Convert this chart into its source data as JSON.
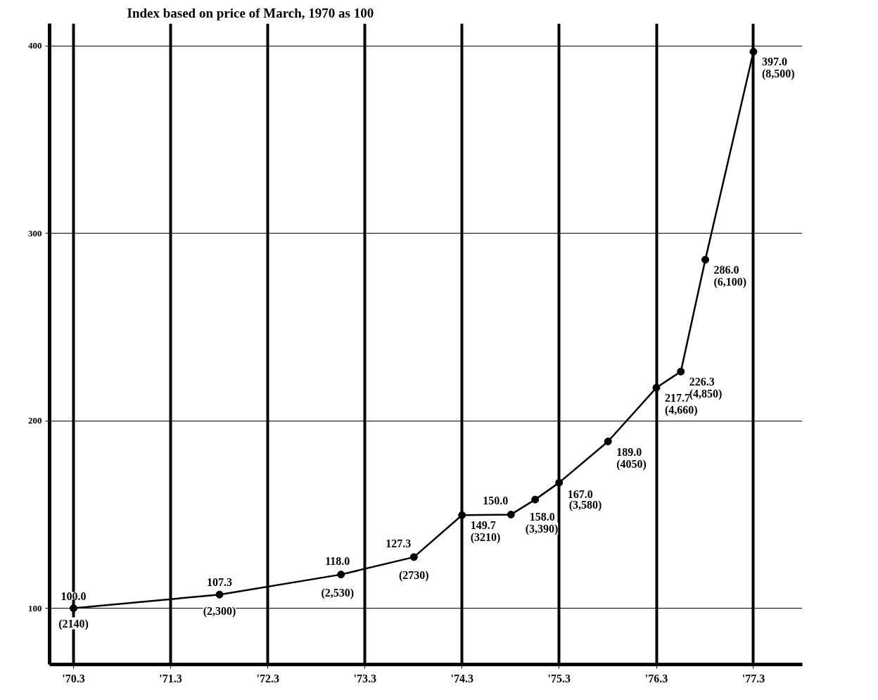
{
  "chart_data": {
    "type": "line",
    "title": "Index based on price of March, 1970 as 100",
    "x": [
      "1970-03",
      "1971-09",
      "1972-12",
      "1973-09",
      "1974-03",
      "1974-09",
      "1974-12",
      "1975-03",
      "1975-09",
      "1976-03",
      "1976-06",
      "1976-09",
      "1977-03"
    ],
    "series": [
      {
        "color": "#000000",
        "values": [
          100.0,
          107.3,
          118.0,
          127.3,
          149.7,
          150.0,
          158.0,
          167.0,
          189.0,
          217.7,
          226.3,
          286.0,
          397.0
        ],
        "value_labels": [
          "100.0",
          "107.3",
          "118.0",
          "127.3",
          "149.7",
          "150.0",
          "158.0",
          "167.0",
          "189.0",
          "217.7",
          "226.3",
          "286.0",
          "397.0"
        ]
      }
    ],
    "annotations": [
      {
        "text": "(2140)",
        "x": "1970-03",
        "y": 100.0
      },
      {
        "text": "(2,300)",
        "x": "1971-09",
        "y": 107.3
      },
      {
        "text": "(2,530)",
        "x": "1972-12",
        "y": 118.0
      },
      {
        "text": "(2730)",
        "x": "1973-09",
        "y": 127.3
      },
      {
        "text": "(3210)",
        "x": "1974-03",
        "y": 149.7
      },
      {
        "text": "(3,390)",
        "x": "1974-12",
        "y": 158.0
      },
      {
        "text": "(3,580)",
        "x": "1975-03",
        "y": 167.0
      },
      {
        "text": "(4050)",
        "x": "1975-09",
        "y": 189.0
      },
      {
        "text": "(4,660)",
        "x": "1976-03",
        "y": 217.7
      },
      {
        "text": "(4,850)",
        "x": "1976-06",
        "y": 226.3
      },
      {
        "text": "(6,100)",
        "x": "1976-09",
        "y": 286.0
      },
      {
        "text": "(8,500)",
        "x": "1977-03",
        "y": 397.0
      }
    ],
    "xlim": [
      "1969-12",
      "1977-09"
    ],
    "ylim": [
      70,
      412
    ],
    "xticks": [
      {
        "value": "1970-03",
        "label": "'70.3"
      },
      {
        "value": "1971-03",
        "label": "'71.3"
      },
      {
        "value": "1972-03",
        "label": "'72.3"
      },
      {
        "value": "1973-03",
        "label": "'73.3"
      },
      {
        "value": "1974-03",
        "label": "'74.3"
      },
      {
        "value": "1975-03",
        "label": "'75.3"
      },
      {
        "value": "1976-03",
        "label": "'76.3"
      },
      {
        "value": "1977-03",
        "label": "'77.3"
      }
    ],
    "yticks": [
      100,
      200,
      300,
      400
    ],
    "grid": true,
    "marker": "circle",
    "line_style": "solid"
  }
}
